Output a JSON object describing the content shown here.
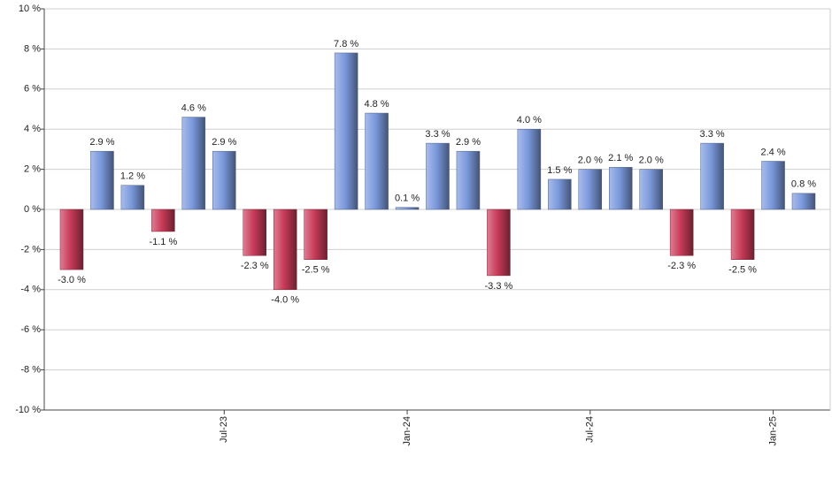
{
  "chart_data": {
    "type": "bar",
    "categories": [
      null,
      null,
      null,
      null,
      null,
      "Jul-23",
      null,
      null,
      null,
      null,
      null,
      "Jan-24",
      null,
      null,
      null,
      null,
      null,
      "Jul-24",
      null,
      null,
      null,
      null,
      null,
      "Jan-25",
      null
    ],
    "values": [
      -3.0,
      2.9,
      1.2,
      -1.1,
      4.6,
      2.9,
      -2.3,
      -4.0,
      -2.5,
      7.8,
      4.8,
      0.1,
      3.3,
      2.9,
      -3.3,
      4.0,
      1.5,
      2.0,
      2.1,
      2.0,
      -2.3,
      3.3,
      -2.5,
      2.4,
      0.8
    ],
    "value_labels": [
      "-3.0 %",
      "2.9 %",
      "1.2 %",
      "-1.1 %",
      "4.6 %",
      "2.9 %",
      "-2.3 %",
      "-4.0 %",
      "-2.5 %",
      "7.8 %",
      "4.8 %",
      "0.1 %",
      "3.3 %",
      "2.9 %",
      "-3.3 %",
      "4.0 %",
      "1.5 %",
      "2.0 %",
      "2.1 %",
      "2.0 %",
      "-2.3 %",
      "3.3 %",
      "-2.5 %",
      "2.4 %",
      "0.8 %"
    ],
    "positive_color": "#7a98dc",
    "negative_color": "#c83a58",
    "ylim": [
      -10,
      10
    ],
    "yticks": [
      {
        "value": -10,
        "label": "-10 %"
      },
      {
        "value": -8,
        "label": "-8 %"
      },
      {
        "value": -6,
        "label": "-6 %"
      },
      {
        "value": -4,
        "label": "-4 %"
      },
      {
        "value": -2,
        "label": "-2 %"
      },
      {
        "value": 0,
        "label": "0 %"
      },
      {
        "value": 2,
        "label": "2 %"
      },
      {
        "value": 4,
        "label": "4 %"
      },
      {
        "value": 6,
        "label": "6 %"
      },
      {
        "value": 8,
        "label": "8 %"
      },
      {
        "value": 10,
        "label": "10 %"
      }
    ],
    "grid": true
  }
}
